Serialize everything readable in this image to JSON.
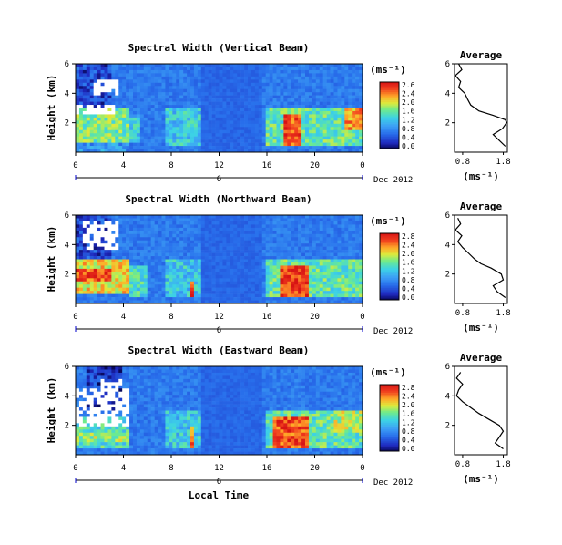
{
  "figure": {
    "xlabel": "Local Time",
    "ylabel": "Height (km)",
    "colorbar_unit": "(ms⁻¹)",
    "date": "Dec 2012",
    "day_label": "6",
    "average_title": "Average",
    "average_xlabel": "(ms⁻¹)"
  },
  "chart_data": [
    {
      "type": "heatmap",
      "title": "Spectral Width (Vertical Beam)",
      "x_ticks": [
        "0",
        "4",
        "8",
        "12",
        "16",
        "20",
        "0"
      ],
      "y_ticks": [
        "6",
        "4",
        "2"
      ],
      "xlim": [
        0,
        24
      ],
      "ylim": [
        0,
        6
      ],
      "colorbar_ticks": [
        "2.6",
        "2.4",
        "2.0",
        "1.6",
        "1.2",
        "0.8",
        "0.4",
        "0.0"
      ],
      "colorbar_range": [
        0,
        2.8
      ],
      "features": [
        {
          "t": [
            0,
            4.5
          ],
          "h": [
            0.7,
            3.0
          ],
          "value": 1.6
        },
        {
          "t": [
            4.5,
            5.5
          ],
          "h": [
            0.7,
            2.5
          ],
          "value": 1.2
        },
        {
          "t": [
            7.5,
            10.5
          ],
          "h": [
            0.5,
            3.0
          ],
          "value": 1.2
        },
        {
          "t": [
            16,
            24
          ],
          "h": [
            0.5,
            3.0
          ],
          "value": 1.5
        },
        {
          "t": [
            17.5,
            18.8
          ],
          "h": [
            0.5,
            2.5
          ],
          "value": 2.5
        },
        {
          "t": [
            22.5,
            24
          ],
          "h": [
            1.5,
            3.0
          ],
          "value": 2.2
        },
        {
          "t": [
            0,
            3
          ],
          "h": [
            3.0,
            6.0
          ],
          "value": 0.4
        },
        {
          "t": [
            0,
            4.5
          ],
          "h": [
            0,
            0.7
          ],
          "value": 0.9
        }
      ],
      "missing": [
        {
          "t": [
            0,
            3.3
          ],
          "h": [
            2.5,
            3.2
          ]
        },
        {
          "t": [
            1.5,
            3.5
          ],
          "h": [
            3.8,
            5.0
          ]
        }
      ]
    },
    {
      "type": "heatmap",
      "title": "Spectral Width (Northward Beam)",
      "x_ticks": [
        "0",
        "4",
        "8",
        "12",
        "16",
        "20",
        "0"
      ],
      "y_ticks": [
        "6",
        "4",
        "2"
      ],
      "xlim": [
        0,
        24
      ],
      "ylim": [
        0,
        6
      ],
      "colorbar_ticks": [
        "2.8",
        "2.4",
        "2.0",
        "1.6",
        "1.2",
        "0.8",
        "0.4",
        "0.0"
      ],
      "colorbar_range": [
        0,
        2.8
      ],
      "features": [
        {
          "t": [
            0,
            4.5
          ],
          "h": [
            0.7,
            3.0
          ],
          "value": 2.0
        },
        {
          "t": [
            0,
            3
          ],
          "h": [
            1.6,
            2.4
          ],
          "value": 2.5
        },
        {
          "t": [
            4.5,
            6
          ],
          "h": [
            0.5,
            2.5
          ],
          "value": 1.4
        },
        {
          "t": [
            7.5,
            10.5
          ],
          "h": [
            0.5,
            3.0
          ],
          "value": 1.2
        },
        {
          "t": [
            9.5,
            10
          ],
          "h": [
            0.5,
            1.5
          ],
          "value": 2.6
        },
        {
          "t": [
            16,
            24
          ],
          "h": [
            0.5,
            3.0
          ],
          "value": 1.5
        },
        {
          "t": [
            17,
            19.5
          ],
          "h": [
            0.5,
            2.5
          ],
          "value": 2.6
        },
        {
          "t": [
            0,
            3
          ],
          "h": [
            3.0,
            6.0
          ],
          "value": 0.4
        }
      ],
      "missing": [
        {
          "t": [
            0.5,
            3.5
          ],
          "h": [
            3.6,
            5.6
          ]
        }
      ]
    },
    {
      "type": "heatmap",
      "title": "Spectral Width (Eastward Beam)",
      "x_ticks": [
        "0",
        "4",
        "8",
        "12",
        "16",
        "20",
        "0"
      ],
      "y_ticks": [
        "6",
        "4",
        "2"
      ],
      "xlim": [
        0,
        24
      ],
      "ylim": [
        0,
        6
      ],
      "colorbar_ticks": [
        "2.8",
        "2.4",
        "2.0",
        "1.6",
        "1.2",
        "0.8",
        "0.4",
        "0.0"
      ],
      "colorbar_range": [
        0,
        2.8
      ],
      "features": [
        {
          "t": [
            0,
            4.5
          ],
          "h": [
            0.5,
            2.5
          ],
          "value": 1.4
        },
        {
          "t": [
            0,
            4.5
          ],
          "h": [
            0.8,
            1.4
          ],
          "value": 1.7
        },
        {
          "t": [
            7.5,
            10.5
          ],
          "h": [
            0.5,
            3.0
          ],
          "value": 1.2
        },
        {
          "t": [
            9.5,
            10
          ],
          "h": [
            0.5,
            2.0
          ],
          "value": 2.4
        },
        {
          "t": [
            16,
            24
          ],
          "h": [
            0.5,
            3.0
          ],
          "value": 1.5
        },
        {
          "t": [
            16.5,
            19.5
          ],
          "h": [
            0.5,
            2.5
          ],
          "value": 2.5
        },
        {
          "t": [
            21.5,
            24
          ],
          "h": [
            1.5,
            3.0
          ],
          "value": 1.8
        },
        {
          "t": [
            1,
            4
          ],
          "h": [
            3.0,
            6.0
          ],
          "value": 0.3
        }
      ],
      "missing": [
        {
          "t": [
            0,
            4.5
          ],
          "h": [
            2.0,
            4.6
          ]
        },
        {
          "t": [
            2,
            4
          ],
          "h": [
            4.6,
            5.2
          ]
        }
      ]
    },
    {
      "type": "line",
      "title": "Average",
      "xlabel": "(ms⁻¹)",
      "x_ticks": [
        "0.8",
        "1.8"
      ],
      "y_ticks": [
        "6",
        "4",
        "2"
      ],
      "xlim": [
        0.6,
        1.9
      ],
      "ylim": [
        0,
        6
      ],
      "series": [
        {
          "height": [
            0.4,
            0.8,
            1.2,
            1.6,
            2.0,
            2.2,
            2.5,
            2.8,
            3.2,
            3.6,
            4.0,
            4.4,
            4.8,
            5.2,
            5.6,
            6.0
          ],
          "value": [
            1.85,
            1.7,
            1.55,
            1.78,
            1.88,
            1.85,
            1.55,
            1.2,
            1.0,
            0.92,
            0.85,
            0.7,
            0.75,
            0.62,
            0.78,
            0.7
          ]
        }
      ]
    },
    {
      "type": "line",
      "title": "Average",
      "xlabel": "(ms⁻¹)",
      "x_ticks": [
        "0.8",
        "1.8"
      ],
      "y_ticks": [
        "6",
        "4",
        "2"
      ],
      "xlim": [
        0.6,
        1.9
      ],
      "ylim": [
        0,
        6
      ],
      "series": [
        {
          "height": [
            0.4,
            0.8,
            1.2,
            1.6,
            2.0,
            2.4,
            2.7,
            3.0,
            3.4,
            3.8,
            4.2,
            4.6,
            5.0,
            5.4,
            5.8
          ],
          "value": [
            1.85,
            1.65,
            1.55,
            1.8,
            1.75,
            1.5,
            1.25,
            1.1,
            0.95,
            0.8,
            0.68,
            0.78,
            0.62,
            0.75,
            0.68
          ]
        }
      ]
    },
    {
      "type": "line",
      "title": "Average",
      "xlabel": "(ms⁻¹)",
      "x_ticks": [
        "0.8",
        "1.8"
      ],
      "y_ticks": [
        "6",
        "4",
        "2"
      ],
      "xlim": [
        0.6,
        1.9
      ],
      "ylim": [
        0,
        6
      ],
      "series": [
        {
          "height": [
            0.4,
            0.8,
            1.2,
            1.6,
            2.0,
            2.4,
            2.8,
            3.2,
            3.6,
            4.0,
            4.4,
            4.8,
            5.2,
            5.6
          ],
          "value": [
            1.8,
            1.6,
            1.7,
            1.8,
            1.7,
            1.45,
            1.2,
            1.0,
            0.8,
            0.65,
            0.7,
            0.8,
            0.65,
            0.75
          ]
        }
      ]
    }
  ]
}
